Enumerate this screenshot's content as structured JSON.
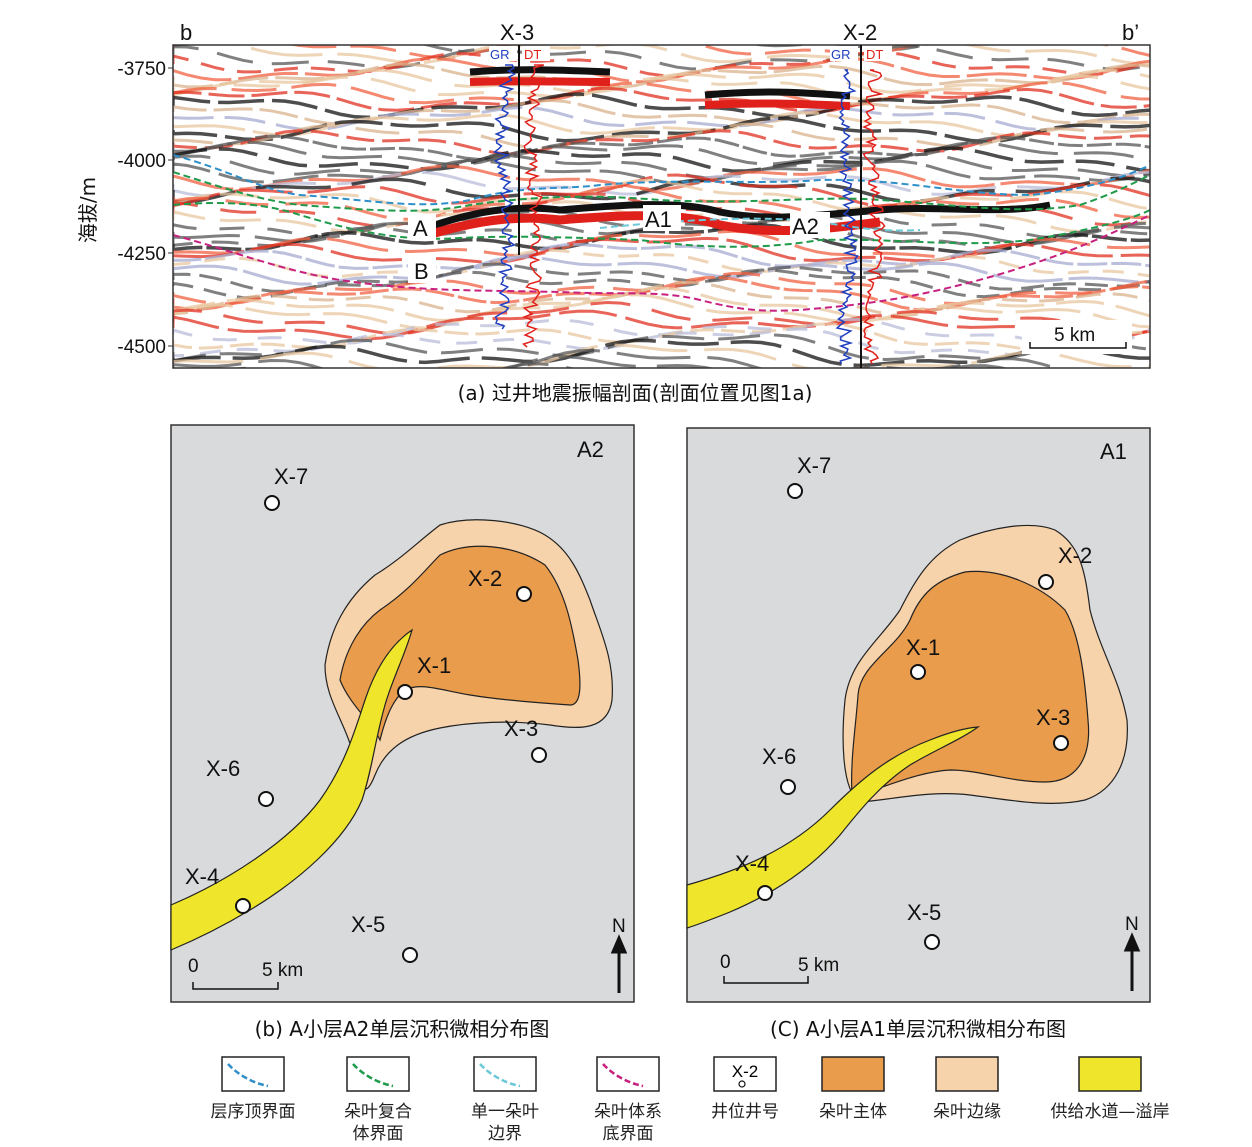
{
  "seismic": {
    "left_label": "b",
    "right_label": "b’",
    "y_axis_label": "海拔/m",
    "y_ticks": [
      "-3750",
      "-4000",
      "-4250",
      "-4500"
    ],
    "wells": [
      {
        "name": "X-3",
        "log1": "GR",
        "log2": "DT"
      },
      {
        "name": "X-2",
        "log1": "GR",
        "log2": "DT"
      }
    ],
    "layer_labels": [
      "A",
      "B",
      "A1",
      "A2"
    ],
    "scale_bar": "5 km",
    "caption": "(a) 过井地震振幅剖面(剖面位置见图1a)"
  },
  "map_b": {
    "layer": "A2",
    "wells": [
      "X-7",
      "X-2",
      "X-1",
      "X-3",
      "X-6",
      "X-4",
      "X-5"
    ],
    "scale_zero": "0",
    "scale_label": "5 km",
    "north": "N",
    "caption": "(b) A小层A2单层沉积微相分布图"
  },
  "map_c": {
    "layer": "A1",
    "wells": [
      "X-7",
      "X-2",
      "X-1",
      "X-3",
      "X-6",
      "X-4",
      "X-5"
    ],
    "scale_zero": "0",
    "scale_label": "5 km",
    "north": "N",
    "caption": "(C) A小层A1单层沉积微相分布图"
  },
  "legend": [
    {
      "label1": "层序顶界面",
      "label2": "",
      "color": "#2f8fc8",
      "kind": "dash"
    },
    {
      "label1": "朵叶复合",
      "label2": "体界面",
      "color": "#1f9a4a",
      "kind": "dash"
    },
    {
      "label1": "单一朵叶",
      "label2": "边界",
      "color": "#6cc8d8",
      "kind": "dash"
    },
    {
      "label1": "朵叶体系",
      "label2": "底界面",
      "color": "#c8207f",
      "kind": "dash"
    },
    {
      "label1": "井位井号",
      "label2": "",
      "sample": "X-2",
      "kind": "well"
    },
    {
      "label1": "朵叶主体",
      "label2": "",
      "color": "#e99c4c",
      "kind": "fill"
    },
    {
      "label1": "朵叶边缘",
      "label2": "",
      "color": "#f7d3ac",
      "kind": "fill"
    },
    {
      "label1": "供给水道—溢岸",
      "label2": "",
      "color": "#efe52a",
      "kind": "fill"
    }
  ],
  "colors": {
    "map_bg": "#d9dadb",
    "lobe_main": "#e99c4c",
    "lobe_edge": "#f7d3ac",
    "channel": "#efe52a"
  }
}
